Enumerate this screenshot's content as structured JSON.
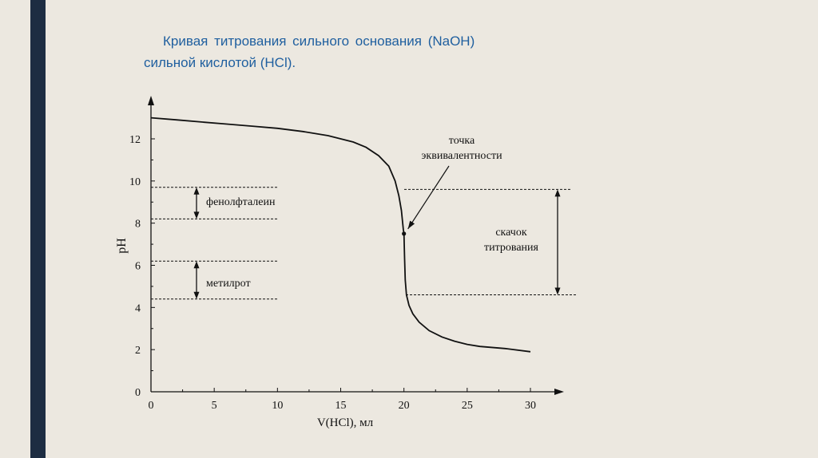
{
  "title": {
    "line1": "Кривая титрования сильного основания (NaOH)",
    "line2": "сильной кислотой (HCl)."
  },
  "colors": {
    "accent_bar": "#1d2d42",
    "title": "#1f5f9f",
    "background": "#ece8e0",
    "curve": "#111111"
  },
  "chart_data": {
    "type": "line",
    "title": "Кривая титрования сильного основания (NaOH) сильной кислотой (HCl).",
    "xlabel": "V(HCl), мл",
    "ylabel": "pH",
    "xlim": [
      0,
      30
    ],
    "ylim": [
      0,
      13
    ],
    "x_ticks": [
      "0",
      "5",
      "10",
      "15",
      "20",
      "25",
      "30"
    ],
    "y_ticks": [
      "0",
      "2",
      "4",
      "6",
      "8",
      "10",
      "12"
    ],
    "grid": false,
    "series": [
      {
        "x": [
          0,
          2,
          4,
          6,
          8,
          10,
          12,
          14,
          16,
          17,
          18,
          18.8,
          19.3,
          19.6,
          19.8,
          19.9,
          19.95,
          20.0,
          20.05,
          20.1,
          20.2,
          20.4,
          20.7,
          21.2,
          22,
          23,
          24,
          25,
          26,
          28,
          30
        ],
        "y": [
          13.0,
          12.9,
          12.8,
          12.7,
          12.6,
          12.5,
          12.35,
          12.15,
          11.85,
          11.6,
          11.2,
          10.7,
          10.0,
          9.3,
          8.6,
          8.0,
          7.7,
          7.5,
          6.3,
          5.3,
          4.6,
          4.1,
          3.7,
          3.3,
          2.9,
          2.6,
          2.4,
          2.25,
          2.15,
          2.05,
          1.9
        ]
      }
    ],
    "annotations": [
      {
        "label": "точка эквивалентности",
        "label_line1": "точка",
        "label_line2": "эквивалентности",
        "x": 20,
        "y": 7.5
      },
      {
        "label": "фенолфталеин",
        "y_range": [
          8.2,
          9.7
        ]
      },
      {
        "label": "метилрот",
        "y_range": [
          4.4,
          6.2
        ]
      },
      {
        "label": "скачок титрования",
        "label_line1": "скачок",
        "label_line2": "титрования",
        "y_range": [
          4.6,
          9.6
        ]
      }
    ]
  }
}
